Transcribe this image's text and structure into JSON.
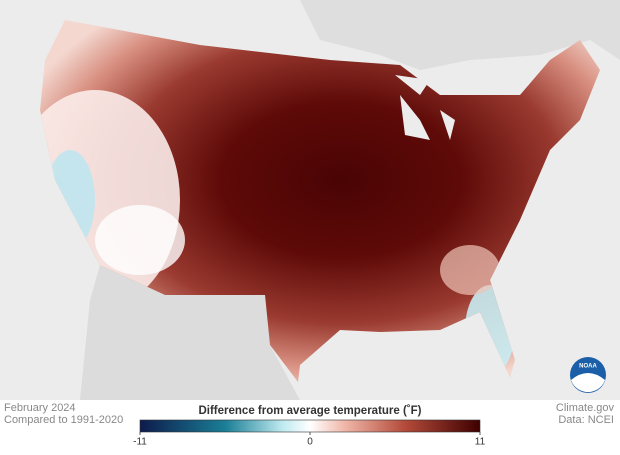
{
  "header": {
    "period": "February 2024",
    "baseline": "Compared to 1991-2020"
  },
  "credits": {
    "source": "Climate.gov",
    "data": "Data: NCEI",
    "logo": "NOAA"
  },
  "colorbar": {
    "title": "Difference from average temperature (˚F)",
    "lim": [
      -11,
      11
    ],
    "ticks": [
      -11,
      0,
      11
    ]
  }
}
